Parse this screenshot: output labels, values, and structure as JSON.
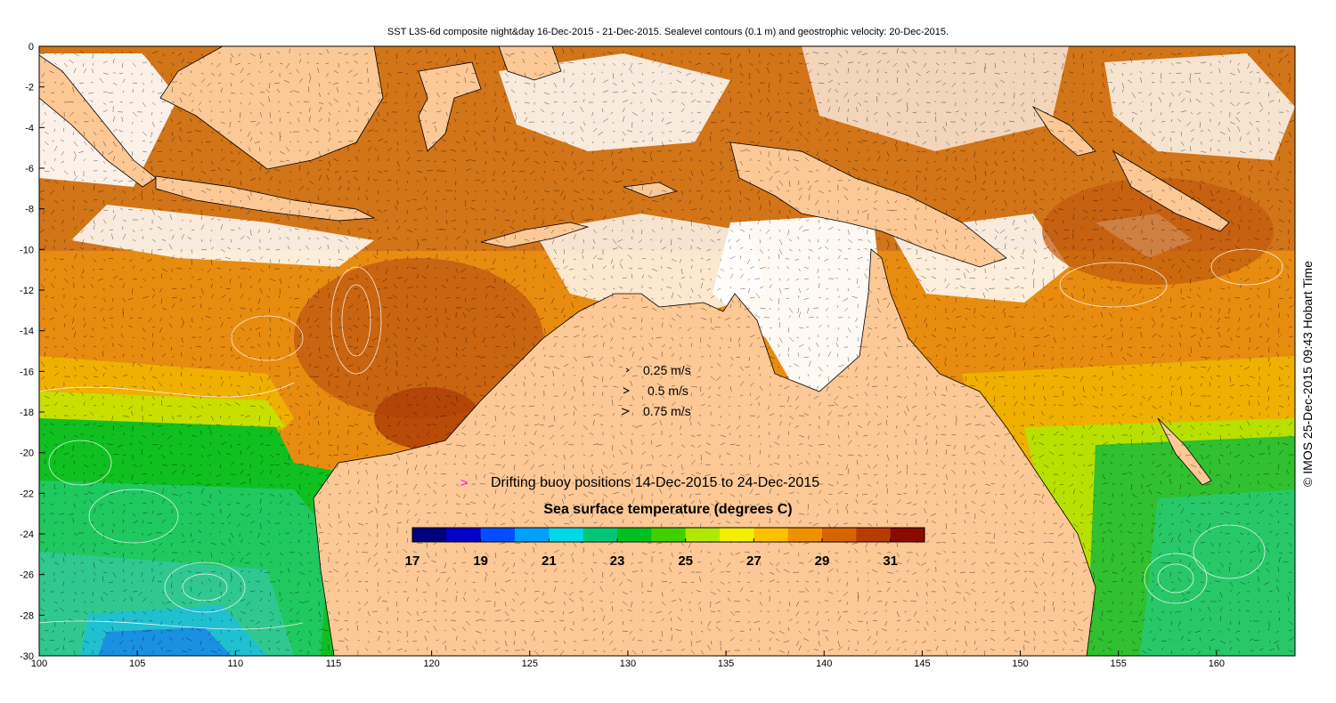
{
  "title": "SST L3S-6d composite night&day 16-Dec-2015 - 21-Dec-2015. Sealevel contours (0.1 m) and geostrophic velocity: 20-Dec-2015.",
  "credit": "© IMOS 25-Dec-2015 09:43 Hobart Time",
  "map": {
    "lon_range": [
      100,
      164
    ],
    "lat_range": [
      -30,
      0
    ],
    "x_ticks": [
      "100",
      "105",
      "110",
      "115",
      "120",
      "125",
      "130",
      "135",
      "140",
      "145",
      "150",
      "155",
      "160"
    ],
    "y_ticks": [
      "0",
      "-2",
      "-4",
      "-6",
      "-8",
      "-10",
      "-12",
      "-14",
      "-16",
      "-18",
      "-20",
      "-22",
      "-24",
      "-26",
      "-28",
      "-30"
    ],
    "land_color": "#fcc896"
  },
  "velocity_legend": {
    "items": [
      {
        "label": "0.25 m/s",
        "speed": 0.25
      },
      {
        "label": "0.5 m/s",
        "speed": 0.5
      },
      {
        "label": "0.75 m/s",
        "speed": 0.75
      }
    ]
  },
  "buoy_legend": {
    "symbol": ">",
    "text": "Drifting buoy positions 14-Dec-2015 to 24-Dec-2015",
    "color": "#ff00ff"
  },
  "colorbar": {
    "title": "Sea surface temperature (degrees C)",
    "min": 17,
    "max": 32,
    "tick_labels": [
      "17",
      "19",
      "21",
      "23",
      "25",
      "27",
      "29",
      "31"
    ],
    "colors": [
      "#00007f",
      "#0000c8",
      "#0050ff",
      "#00a0ff",
      "#00d8e8",
      "#00c878",
      "#00c020",
      "#40d000",
      "#b0e800",
      "#f0f000",
      "#ffc000",
      "#f09000",
      "#d86400",
      "#b83c00",
      "#8c0a00"
    ]
  }
}
